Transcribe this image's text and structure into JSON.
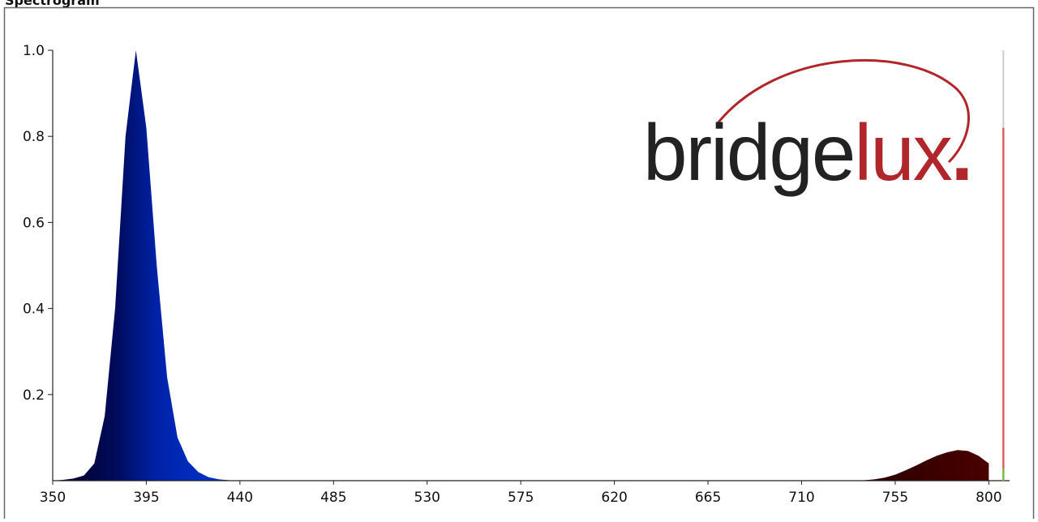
{
  "title": "Spectrogram",
  "logo": {
    "dark": "bridge",
    "accent": "lux",
    "dot": "."
  },
  "chart_data": {
    "type": "area",
    "x": [
      350,
      355,
      360,
      365,
      370,
      375,
      380,
      385,
      390,
      395,
      400,
      405,
      410,
      415,
      420,
      425,
      430,
      435,
      440,
      445,
      450,
      455,
      460,
      465,
      470,
      475,
      480,
      485,
      490,
      495,
      500,
      505,
      510,
      515,
      520,
      525,
      530,
      535,
      540,
      545,
      550,
      555,
      560,
      565,
      570,
      575,
      580,
      585,
      590,
      595,
      600,
      605,
      610,
      615,
      620,
      625,
      630,
      635,
      640,
      645,
      650,
      655,
      660,
      665,
      670,
      675,
      680,
      685,
      690,
      695,
      700,
      705,
      710,
      715,
      720,
      725,
      730,
      735,
      740,
      745,
      750,
      755,
      760,
      765,
      770,
      775,
      780,
      785,
      790,
      795,
      800
    ],
    "values": [
      0,
      0.002,
      0.005,
      0.012,
      0.04,
      0.15,
      0.4,
      0.8,
      1.0,
      0.82,
      0.5,
      0.24,
      0.1,
      0.045,
      0.02,
      0.008,
      0.003,
      0.001,
      0,
      0,
      0,
      0,
      0,
      0,
      0,
      0,
      0,
      0,
      0,
      0,
      0,
      0,
      0,
      0,
      0,
      0,
      0,
      0,
      0,
      0,
      0,
      0,
      0,
      0,
      0,
      0,
      0,
      0,
      0,
      0,
      0,
      0,
      0,
      0,
      0,
      0,
      0,
      0,
      0,
      0,
      0,
      0,
      0,
      0,
      0,
      0,
      0,
      0,
      0,
      0,
      0,
      0,
      0,
      0,
      0,
      0,
      0,
      0,
      0.001,
      0.003,
      0.007,
      0.014,
      0.024,
      0.035,
      0.047,
      0.058,
      0.066,
      0.071,
      0.069,
      0.058,
      0.04
    ],
    "gradient": [
      {
        "offset": 350,
        "color": "#000022"
      },
      {
        "offset": 380,
        "color": "#000a5a"
      },
      {
        "offset": 400,
        "color": "#0022a8"
      },
      {
        "offset": 430,
        "color": "#0033cc"
      },
      {
        "offset": 740,
        "color": "#2a0000"
      },
      {
        "offset": 800,
        "color": "#4a0000"
      }
    ],
    "xlim": [
      350,
      810
    ],
    "ylim": [
      0,
      1
    ],
    "xticks": [
      350,
      395,
      440,
      485,
      530,
      575,
      620,
      665,
      710,
      755,
      800
    ],
    "yticks": [
      0.2,
      0.4,
      0.6,
      0.8,
      {
        "value": 1,
        "label": "1.0"
      }
    ],
    "cursor": {
      "x": 807,
      "y": 0.82
    }
  }
}
